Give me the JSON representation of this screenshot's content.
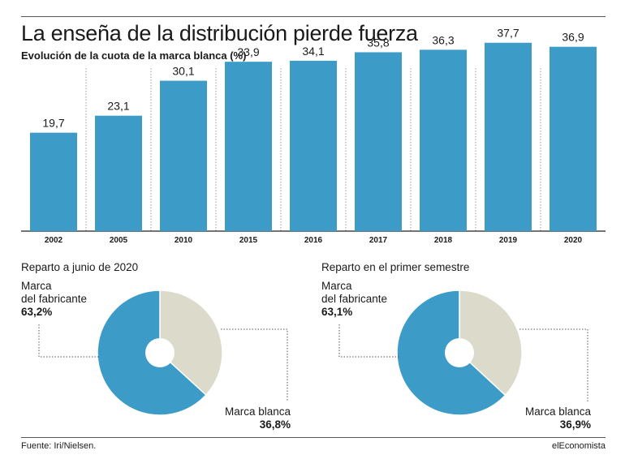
{
  "title": "La enseña de la distribución pierde fuerza",
  "subtitle": "Evolución de la cuota de la marca blanca (%)",
  "chart_data": [
    {
      "type": "bar",
      "categories": [
        "2002",
        "2005",
        "2010",
        "2015",
        "2016",
        "2017",
        "2018",
        "2019",
        "2020"
      ],
      "values": [
        19.7,
        23.1,
        30.1,
        33.9,
        34.1,
        35.8,
        36.3,
        37.7,
        36.9
      ],
      "value_labels": [
        "19,7",
        "23,1",
        "30,1",
        "33,9",
        "34,1",
        "35,8",
        "36,3",
        "37,7",
        "36,9"
      ],
      "ylim": [
        0,
        40
      ],
      "grid": false,
      "color": "#3d9cc7"
    },
    {
      "type": "pie",
      "title": "Reparto a junio de 2020",
      "slices": [
        {
          "label": "Marca blanca",
          "value": 36.8,
          "value_label": "36,8%",
          "color": "#dcdacb"
        },
        {
          "label": "Marca del fabricante",
          "value": 63.2,
          "value_label": "63,2%",
          "color": "#3d9cc7"
        }
      ]
    },
    {
      "type": "pie",
      "title": "Reparto en el primer semestre",
      "slices": [
        {
          "label": "Marca blanca",
          "value": 36.9,
          "value_label": "36,9%",
          "color": "#dcdacb"
        },
        {
          "label": "Marca del fabricante",
          "value": 63.1,
          "value_label": "63,1%",
          "color": "#3d9cc7"
        }
      ]
    }
  ],
  "pie_labels": {
    "fabricante_line1": "Marca",
    "fabricante_line2": "del fabricante",
    "blanca": "Marca blanca"
  },
  "footer": {
    "source": "Fuente: Iri/Nielsen.",
    "brand": "elEconomista"
  }
}
